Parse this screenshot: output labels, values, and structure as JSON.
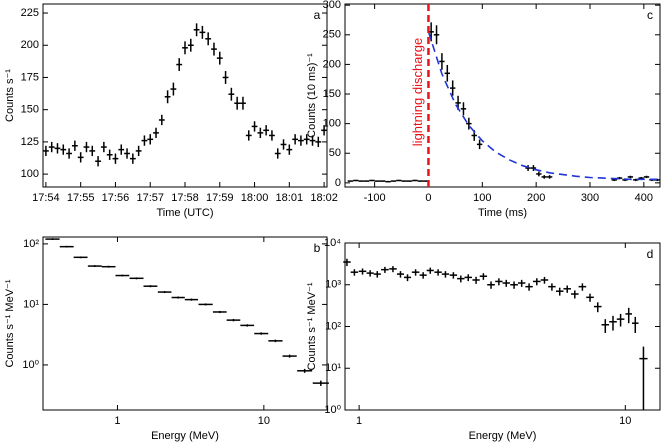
{
  "chart_data": [
    {
      "type": "scatter",
      "label": "a",
      "xlabel": "Time (UTC)",
      "ylabel": "Counts s⁻¹",
      "categories": [
        "17:54",
        null,
        null,
        null,
        null,
        null,
        "17:55",
        null,
        null,
        null,
        null,
        null,
        "17:56",
        null,
        null,
        null,
        null,
        null,
        "17:57",
        null,
        null,
        null,
        null,
        null,
        "17:58",
        null,
        null,
        null,
        null,
        null,
        "17:59",
        null,
        null,
        null,
        null,
        null,
        "18:00",
        null,
        null,
        null,
        null,
        null,
        "18:01",
        null,
        null,
        null,
        null,
        null,
        "18:02"
      ],
      "series": [
        {
          "color": "#000000",
          "values": [
            118,
            121,
            120,
            119,
            116,
            122,
            113,
            121,
            118,
            110,
            121,
            115,
            112,
            119,
            116,
            112,
            118,
            126,
            127,
            132,
            142,
            160,
            166,
            185,
            198,
            200,
            212,
            210,
            205,
            197,
            190,
            175,
            162,
            155,
            155,
            130,
            137,
            132,
            134,
            130,
            116,
            123,
            119,
            127,
            126,
            127,
            126,
            125,
            134
          ],
          "errors": [
            4,
            4,
            4,
            4,
            4,
            4,
            4,
            4,
            4,
            4,
            4,
            4,
            4,
            4,
            4,
            4,
            4,
            4,
            4,
            4,
            4,
            5,
            5,
            5,
            5,
            5,
            5,
            5,
            5,
            5,
            5,
            5,
            5,
            5,
            5,
            4,
            4,
            4,
            4,
            4,
            4,
            4,
            4,
            4,
            4,
            4,
            4,
            4,
            4
          ]
        }
      ],
      "ylim": [
        90,
        232
      ],
      "yticks": [
        100,
        125,
        150,
        175,
        200,
        225
      ]
    },
    {
      "type": "scatter",
      "label": "c",
      "xlabel": "Time (ms)",
      "ylabel": "Counts (10 ms)⁻¹",
      "series": [
        {
          "color": "#000000",
          "x": [
            -145,
            -135,
            -125,
            -115,
            -105,
            -95,
            -85,
            -75,
            -65,
            -55,
            -45,
            -35,
            -25,
            -15,
            -5,
            5,
            15,
            25,
            35,
            45,
            55,
            65,
            75,
            85,
            95,
            185,
            195,
            205,
            215,
            225,
            345,
            355,
            365,
            375,
            385,
            395,
            405,
            415,
            425
          ],
          "values": [
            3,
            4,
            3,
            3,
            4,
            3,
            3,
            2,
            3,
            4,
            3,
            3,
            4,
            3,
            3,
            255,
            250,
            205,
            185,
            160,
            135,
            125,
            100,
            80,
            65,
            25,
            25,
            15,
            10,
            10,
            5,
            8,
            5,
            10,
            5,
            8,
            10,
            5,
            5
          ],
          "errors": [
            1,
            1,
            1,
            1,
            1,
            1,
            1,
            1,
            1,
            1,
            1,
            1,
            1,
            1,
            1,
            16,
            16,
            14,
            14,
            13,
            12,
            11,
            10,
            9,
            8,
            5,
            5,
            4,
            3,
            3,
            2,
            2,
            2,
            2,
            2,
            2,
            2,
            2,
            2
          ]
        },
        {
          "type": "line",
          "color": "#2035d8",
          "dashed": true,
          "x": [
            0,
            25,
            50,
            75,
            100,
            125,
            150,
            175,
            200,
            225,
            250,
            275,
            300,
            325,
            350,
            375,
            400,
            425
          ],
          "values": [
            255,
            184,
            133,
            97,
            71,
            52,
            39,
            29,
            22,
            17,
            14,
            11,
            9,
            8,
            7,
            6,
            6,
            6
          ]
        }
      ],
      "annotations": [
        {
          "text": "lightning discharge",
          "x": 0,
          "color": "#e8141b"
        }
      ],
      "xlim": [
        -155,
        430
      ],
      "xticks": [
        -100,
        0,
        100,
        200,
        300,
        400
      ],
      "ylim": [
        -7,
        302
      ],
      "yticks": [
        0,
        50,
        100,
        150,
        200,
        250,
        300
      ]
    },
    {
      "type": "scatter",
      "label": "b",
      "xlabel": "Energy (MeV)",
      "ylabel": "Counts s⁻¹ MeV⁻¹",
      "xscale": "log",
      "yscale": "log",
      "series": [
        {
          "color": "#000000",
          "x": [
            0.36,
            0.45,
            0.56,
            0.7,
            0.87,
            1.08,
            1.35,
            1.68,
            2.1,
            2.6,
            3.2,
            4.0,
            5.0,
            6.2,
            7.7,
            9.6,
            12,
            15,
            19,
            24.5
          ],
          "values": [
            120,
            90,
            60,
            43,
            42,
            30,
            27,
            20,
            16,
            13,
            12,
            10,
            7.5,
            5.5,
            4.5,
            3.3,
            2.5,
            1.4,
            0.8,
            0.5
          ],
          "errors": [
            4,
            3,
            2,
            1.5,
            1.5,
            1,
            1,
            0.8,
            0.6,
            0.5,
            0.5,
            0.4,
            0.3,
            0.25,
            0.2,
            0.15,
            0.12,
            0.08,
            0.06,
            0.05
          ]
        }
      ],
      "xlim": [
        0.31,
        27
      ],
      "xticks": [
        1,
        10
      ],
      "ylim": [
        0.18,
        130
      ],
      "yticks": [
        {
          "value": 1,
          "label": "10⁰"
        },
        {
          "value": 10,
          "label": "10¹"
        },
        {
          "value": 100,
          "label": "10²"
        }
      ]
    },
    {
      "type": "scatter",
      "label": "d",
      "xlabel": "Energy (MeV)",
      "ylabel": "Counts s⁻¹ MeV⁻¹",
      "xscale": "log",
      "yscale": "log",
      "series": [
        {
          "color": "#000000",
          "x": [
            0.9,
            0.96,
            1.03,
            1.1,
            1.17,
            1.25,
            1.34,
            1.43,
            1.52,
            1.63,
            1.74,
            1.85,
            1.98,
            2.11,
            2.26,
            2.41,
            2.57,
            2.75,
            2.93,
            3.13,
            3.35,
            3.57,
            3.82,
            4.08,
            4.35,
            4.65,
            4.97,
            5.3,
            5.67,
            6.05,
            6.46,
            6.9,
            7.37,
            7.88,
            8.41,
            8.99,
            9.6,
            10.3,
            10.9,
            11.7
          ],
          "values": [
            3500,
            2000,
            2100,
            1900,
            1800,
            2300,
            2400,
            1800,
            1500,
            2000,
            1700,
            2200,
            2000,
            1800,
            1700,
            1400,
            1500,
            1300,
            1600,
            1000,
            1200,
            1100,
            1000,
            1100,
            900,
            1200,
            1300,
            900,
            700,
            800,
            600,
            900,
            500,
            300,
            110,
            130,
            150,
            200,
            120,
            17
          ],
          "errors": [
            700,
            350,
            350,
            330,
            320,
            380,
            400,
            320,
            280,
            350,
            300,
            370,
            350,
            320,
            300,
            260,
            280,
            250,
            290,
            200,
            230,
            210,
            200,
            210,
            180,
            230,
            240,
            180,
            150,
            160,
            130,
            180,
            110,
            80,
            40,
            50,
            50,
            80,
            50,
            16
          ]
        }
      ],
      "xlim": [
        0.885,
        13.5
      ],
      "xticks": [
        1,
        10
      ],
      "ylim": [
        1,
        10000
      ],
      "yticks": [
        {
          "value": 1,
          "label": "10⁰"
        },
        {
          "value": 10,
          "label": "10¹"
        },
        {
          "value": 100,
          "label": "10²"
        },
        {
          "value": 1000,
          "label": "10³"
        },
        {
          "value": 10000,
          "label": "10⁴"
        }
      ]
    }
  ]
}
